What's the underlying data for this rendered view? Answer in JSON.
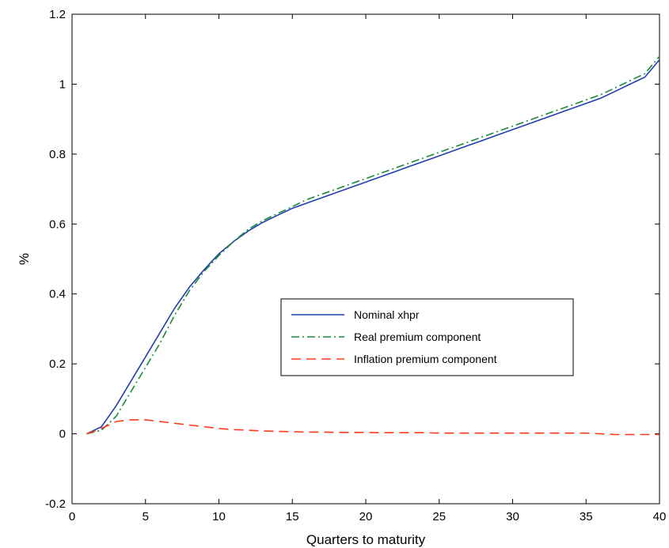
{
  "chart_data": {
    "type": "line",
    "title": "",
    "xlabel": "Quarters to maturity",
    "ylabel": "%",
    "xlim": [
      0,
      40
    ],
    "ylim": [
      -0.2,
      1.2
    ],
    "xticks": [
      0,
      5,
      10,
      15,
      20,
      25,
      30,
      35,
      40
    ],
    "yticks": [
      -0.2,
      0,
      0.2,
      0.4,
      0.6,
      0.8,
      1,
      1.2
    ],
    "xtick_labels": [
      "0",
      "5",
      "10",
      "15",
      "20",
      "25",
      "30",
      "35",
      "40"
    ],
    "ytick_labels": [
      "-0.2",
      "0",
      "0.2",
      "0.4",
      "0.6",
      "0.8",
      "1",
      "1.2"
    ],
    "grid": false,
    "legend_position": "center-right",
    "series": [
      {
        "name": "Nominal xhpr",
        "color": "#1f3fb0",
        "style": "solid",
        "x": [
          1,
          2,
          3,
          4,
          5,
          6,
          7,
          8,
          9,
          10,
          11,
          12,
          13,
          14,
          15,
          16,
          17,
          18,
          19,
          20,
          21,
          22,
          23,
          24,
          25,
          26,
          27,
          28,
          29,
          30,
          31,
          32,
          33,
          34,
          35,
          36,
          37,
          38,
          39,
          40
        ],
        "y": [
          0.0,
          0.02,
          0.08,
          0.15,
          0.22,
          0.29,
          0.36,
          0.42,
          0.47,
          0.515,
          0.55,
          0.58,
          0.605,
          0.625,
          0.645,
          0.66,
          0.675,
          0.69,
          0.705,
          0.72,
          0.735,
          0.75,
          0.765,
          0.78,
          0.795,
          0.81,
          0.825,
          0.84,
          0.855,
          0.87,
          0.885,
          0.9,
          0.915,
          0.93,
          0.945,
          0.96,
          0.98,
          1.0,
          1.02,
          1.07
        ]
      },
      {
        "name": "Real premium component",
        "color": "#1a8a3a",
        "style": "dashdot",
        "x": [
          1,
          2,
          3,
          4,
          5,
          6,
          7,
          8,
          9,
          10,
          11,
          12,
          13,
          14,
          15,
          16,
          17,
          18,
          19,
          20,
          21,
          22,
          23,
          24,
          25,
          26,
          27,
          28,
          29,
          30,
          31,
          32,
          33,
          34,
          35,
          36,
          37,
          38,
          39,
          40
        ],
        "y": [
          0.0,
          0.01,
          0.05,
          0.12,
          0.19,
          0.26,
          0.34,
          0.41,
          0.465,
          0.51,
          0.55,
          0.585,
          0.61,
          0.63,
          0.65,
          0.67,
          0.685,
          0.7,
          0.715,
          0.73,
          0.745,
          0.76,
          0.775,
          0.79,
          0.805,
          0.82,
          0.835,
          0.85,
          0.865,
          0.88,
          0.895,
          0.91,
          0.925,
          0.94,
          0.955,
          0.97,
          0.99,
          1.01,
          1.03,
          1.08
        ]
      },
      {
        "name": "Inflation premium component",
        "color": "#ff3b1a",
        "style": "dashed",
        "x": [
          1,
          2,
          3,
          4,
          5,
          6,
          7,
          8,
          9,
          10,
          11,
          12,
          13,
          14,
          15,
          16,
          17,
          18,
          19,
          20,
          21,
          22,
          23,
          24,
          25,
          26,
          27,
          28,
          29,
          30,
          31,
          32,
          33,
          34,
          35,
          36,
          37,
          38,
          39,
          40
        ],
        "y": [
          0.0,
          0.015,
          0.035,
          0.04,
          0.04,
          0.035,
          0.03,
          0.025,
          0.02,
          0.015,
          0.012,
          0.01,
          0.008,
          0.007,
          0.006,
          0.005,
          0.005,
          0.004,
          0.004,
          0.004,
          0.003,
          0.003,
          0.003,
          0.003,
          0.002,
          0.002,
          0.002,
          0.002,
          0.002,
          0.002,
          0.002,
          0.002,
          0.002,
          0.002,
          0.002,
          0.0,
          -0.002,
          -0.002,
          -0.002,
          -0.002
        ]
      }
    ]
  }
}
